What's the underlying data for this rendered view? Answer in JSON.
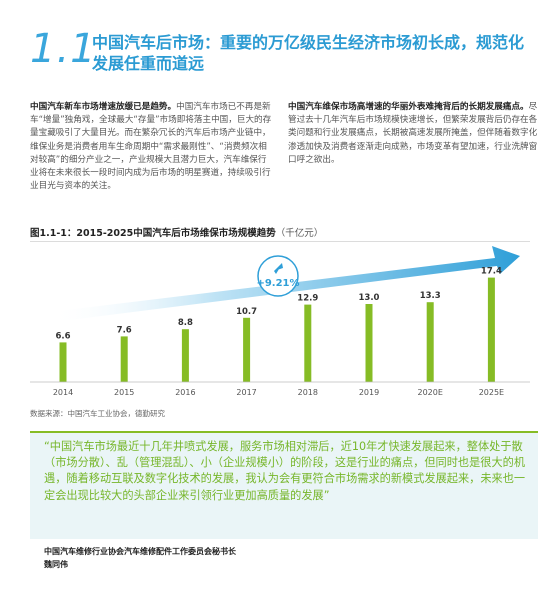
{
  "section": {
    "number": "1.1",
    "title": "中国汽车后市场：重要的万亿级民生经济市场初长成，规范化发展任重而道远"
  },
  "left_column": {
    "heading": "中国汽车新车市场增速放缓已是趋势。",
    "body": "中国汽车市场已不再是新车“增量”独角戏，全球最大“存量”市场即将落主中国，巨大的存量宝藏吸引了大量目光。而在繁杂冗长的汽车后市场产业链中，维保业务是消费者用车生命周期中“需求最刚性”、“消费频次相对较高”的细分产业之一，产业规模大且潜力巨大，汽车维保行业将在未来很长一段时间内成为后市场的明星赛道，持续吸引行业目光与资本的关注。"
  },
  "right_column": {
    "heading": "中国汽车维保市场高增速的华丽外表难掩背后的长期发展痛点。",
    "body": "尽管过去十几年汽车后市场规模快速增长，但繁荣发展背后仍存在各类问题和行业发展痛点，长期被高速发展所掩盖，但伴随着数字化渗透加快及消费者逐渐走向成熟，市场变革有望加速，行业洗牌窗口呼之欲出。"
  },
  "chart_title": "图1.1-1：2015-2025中国汽车后市场维保市场规模趋势",
  "chart_unit": "（千亿元）",
  "chart_data": {
    "type": "bar",
    "title": "图1.1-1：2015-2025中国汽车后市场维保市场规模趋势",
    "ylabel": "（千亿元）",
    "categories": [
      "2014",
      "2015",
      "2016",
      "2017",
      "2018",
      "2019",
      "2020E",
      "2025E"
    ],
    "values": [
      6.6,
      7.6,
      8.8,
      10.7,
      12.9,
      13.0,
      13.3,
      17.4
    ],
    "ylim": [
      0,
      20
    ],
    "grid": false,
    "annotation": "+9.21%",
    "colors": {
      "bar": "#86bc25",
      "arrow": "#2f9fd8",
      "axis": "#bbbbbb"
    }
  },
  "source": "数据来源：中国汽车工业协会，德勤研究",
  "quote": {
    "text": "“中国汽车市场最近十几年井喷式发展，服务市场相对滞后，近10年才快速发展起来，整体处于散（市场分散）、乱（管理混乱）、小（企业规模小）的阶段，这是行业的痛点，但同时也是很大的机遇，随着移动互联及数字化技术的发展，我认为会有更符合市场需求的新模式发展起来，未来也一定会出现比较大的头部企业来引领行业更加高质量的发展”"
  },
  "attribution": {
    "title": "中国汽车维修行业协会汽车维修配件工作委员会秘书长",
    "name": "魏同伟"
  }
}
